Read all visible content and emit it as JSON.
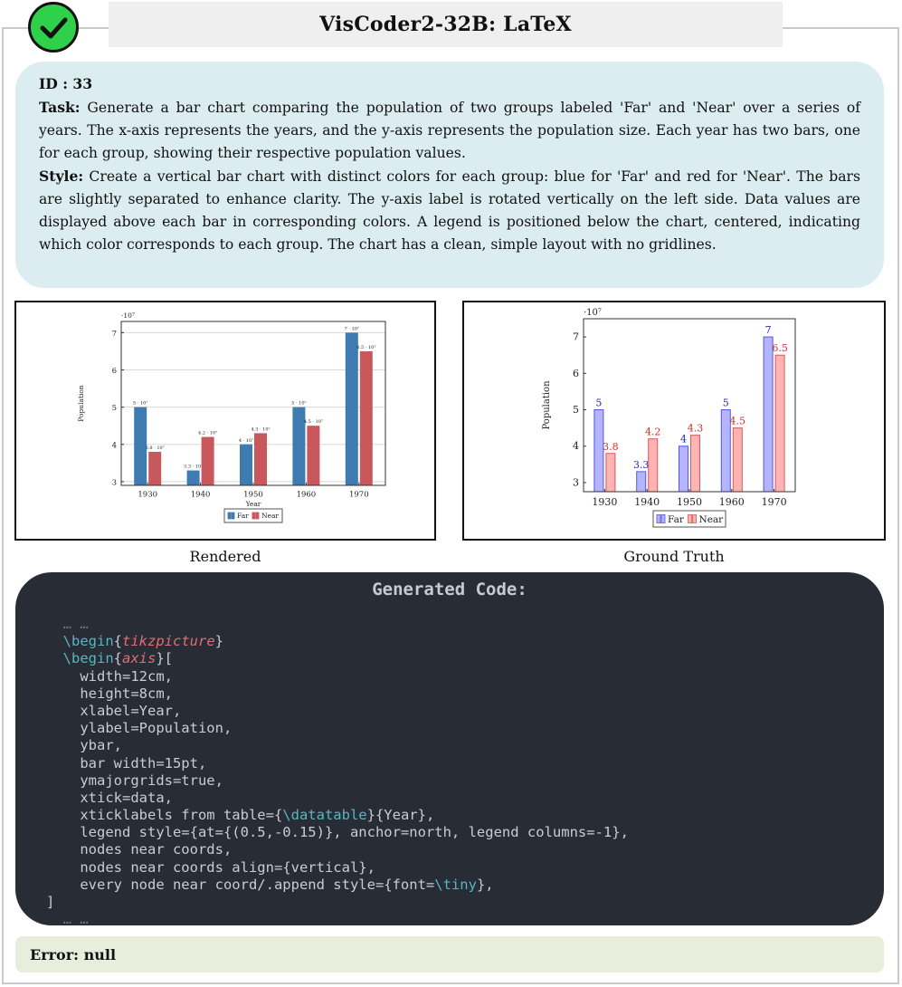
{
  "header": {
    "title": "VisCoder2-32B: LaTeX"
  },
  "task": {
    "id_label": "ID : 33",
    "task_label": "Task:",
    "task_text": " Generate a bar chart comparing the population of two groups labeled 'Far' and 'Near' over a series of years. The x-axis represents the years, and the y-axis represents the population size. Each year has two bars, one for each group, showing their respective population values.",
    "style_label": "Style:",
    "style_text": " Create a vertical bar chart with distinct colors for each group: blue for 'Far' and red for 'Near'. The bars are slightly separated to enhance clarity. The y-axis label is rotated vertically on the left side. Data values are displayed above each bar in corresponding colors. A legend is positioned below the chart, centered, indicating which color corresponds to each group. The chart has a clean, simple layout with no gridlines."
  },
  "captions": {
    "rendered": "Rendered",
    "ground_truth": "Ground Truth"
  },
  "chart_data": [
    {
      "type": "bar",
      "categories": [
        "1930",
        "1940",
        "1950",
        "1960",
        "1970"
      ],
      "series": [
        {
          "name": "Far",
          "values": [
            5,
            3.3,
            4,
            5,
            7
          ],
          "color": "#3e7bb1",
          "labels": [
            "5 · 10⁷",
            "3.3 · 10⁷",
            "4 · 10⁷",
            "5 · 10⁷",
            "7 · 10⁷"
          ]
        },
        {
          "name": "Near",
          "values": [
            3.8,
            4.2,
            4.3,
            4.5,
            6.5
          ],
          "color": "#c9585c",
          "labels": [
            "3.8 · 10⁷",
            "4.2 · 10⁷",
            "4.3 · 10⁷",
            "4.5 · 10⁷",
            "6.5 · 10⁷"
          ]
        }
      ],
      "xlabel": "Year",
      "ylabel": "Population",
      "yticks": [
        "3",
        "4",
        "5",
        "6",
        "7"
      ],
      "ylim": [
        2.9,
        7.3
      ],
      "y_multiplier": "·10⁷",
      "grid": true,
      "legend": "bottom-center"
    },
    {
      "type": "bar",
      "categories": [
        "1930",
        "1940",
        "1950",
        "1960",
        "1970"
      ],
      "series": [
        {
          "name": "Far",
          "values": [
            5,
            3.3,
            4,
            5,
            7
          ],
          "color": "#b4b4ff",
          "stroke": "#5656e0",
          "label_color": "#2525cc",
          "labels": [
            "5",
            "3.3",
            "4",
            "5",
            "7"
          ]
        },
        {
          "name": "Near",
          "values": [
            3.8,
            4.2,
            4.3,
            4.5,
            6.5
          ],
          "color": "#ffb4b4",
          "stroke": "#e05656",
          "label_color": "#dd2a2a",
          "labels": [
            "3.8",
            "4.2",
            "4.3",
            "4.5",
            "6.5"
          ]
        }
      ],
      "xlabel": "",
      "ylabel": "Population",
      "yticks": [
        "3",
        "4",
        "5",
        "6",
        "7"
      ],
      "ylim": [
        2.75,
        7.5
      ],
      "y_multiplier": "·10⁷",
      "grid": false,
      "legend": "bottom-center"
    }
  ],
  "code": {
    "header": "Generated Code:",
    "ellipsis": "… …",
    "kw_begin": "\\begin",
    "env_tikz": "tikzpicture",
    "env_axis": "axis",
    "lines": [
      "width=12cm,",
      "height=8cm,",
      "xlabel=Year,",
      "ylabel=Population,",
      "ybar,",
      "bar width=15pt,",
      "ymajorgrids=true,",
      "xtick=data,"
    ],
    "xticklabels_pre": "xticklabels from table={",
    "datatable": "\\datatable",
    "xticklabels_post": "}{Year},",
    "legend_line": "legend style={at={(0.5,-0.15)}, anchor=north, legend columns=-1},",
    "nodes_line": "nodes near coords,",
    "align_line": "nodes near coords align={vertical},",
    "every_pre": "every node near coord/.append style={font=",
    "tiny": "\\tiny",
    "every_post": "},",
    "close_bracket": "]"
  },
  "error": {
    "text": "Error: null"
  }
}
